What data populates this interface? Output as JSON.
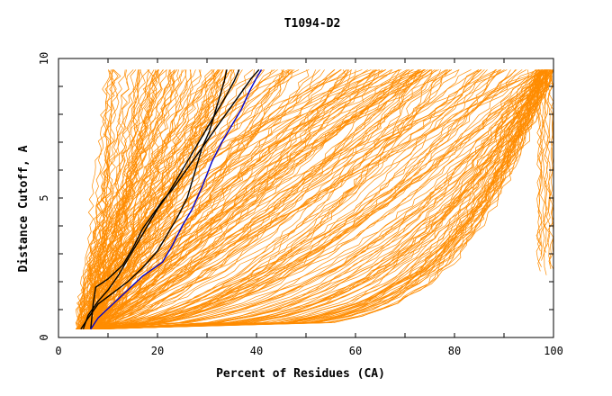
{
  "chart_data": {
    "type": "line",
    "title": "T1094-D2",
    "xlabel": "Percent of Residues (CA)",
    "ylabel": "Distance Cutoff, A",
    "xlim": [
      0,
      100
    ],
    "ylim": [
      0,
      10
    ],
    "x_ticks": [
      0,
      20,
      40,
      60,
      80,
      100
    ],
    "y_ticks": [
      0,
      5,
      10
    ],
    "grid": false,
    "legend": "none",
    "colors": {
      "background_series": "#ff8c00",
      "highlight_black": "#000000",
      "highlight_blue": "#0000cc"
    },
    "highlight_series": [
      {
        "color": "#000000",
        "points": [
          [
            6.5,
            0.3
          ],
          [
            7.0,
            1.2
          ],
          [
            7.5,
            1.8
          ],
          [
            10,
            2.1
          ],
          [
            13,
            2.6
          ],
          [
            15,
            3.2
          ],
          [
            17,
            3.9
          ],
          [
            19,
            4.4
          ],
          [
            21,
            4.9
          ],
          [
            23,
            5.3
          ],
          [
            25,
            5.8
          ],
          [
            27,
            6.3
          ],
          [
            29,
            6.8
          ],
          [
            31,
            7.3
          ],
          [
            33,
            7.8
          ],
          [
            35,
            8.3
          ],
          [
            37,
            8.8
          ],
          [
            39,
            9.3
          ],
          [
            40.5,
            9.6
          ]
        ]
      },
      {
        "color": "#000000",
        "points": [
          [
            5.0,
            0.3
          ],
          [
            6.0,
            0.8
          ],
          [
            8.0,
            1.3
          ],
          [
            10,
            1.7
          ],
          [
            12,
            2.2
          ],
          [
            14,
            2.8
          ],
          [
            16,
            3.4
          ],
          [
            18,
            4.0
          ],
          [
            20,
            4.6
          ],
          [
            22,
            5.1
          ],
          [
            24,
            5.7
          ],
          [
            26,
            6.3
          ],
          [
            28,
            6.9
          ],
          [
            30,
            7.5
          ],
          [
            32,
            8.1
          ],
          [
            34,
            8.7
          ],
          [
            35.5,
            9.2
          ],
          [
            36.5,
            9.6
          ]
        ]
      },
      {
        "color": "#000000",
        "points": [
          [
            4.5,
            0.3
          ],
          [
            6.0,
            0.7
          ],
          [
            8.0,
            1.2
          ],
          [
            11,
            1.6
          ],
          [
            14,
            2.0
          ],
          [
            17,
            2.5
          ],
          [
            20,
            3.1
          ],
          [
            22,
            3.7
          ],
          [
            24,
            4.3
          ],
          [
            26,
            5.0
          ],
          [
            27,
            5.6
          ],
          [
            28,
            6.2
          ],
          [
            29,
            6.8
          ],
          [
            30.5,
            7.4
          ],
          [
            31.5,
            8.0
          ],
          [
            32.5,
            8.6
          ],
          [
            33.5,
            9.2
          ],
          [
            34,
            9.6
          ]
        ]
      },
      {
        "color": "#0000cc",
        "points": [
          [
            6.5,
            0.3
          ],
          [
            8,
            0.7
          ],
          [
            11,
            1.2
          ],
          [
            14,
            1.7
          ],
          [
            17,
            2.2
          ],
          [
            21,
            2.7
          ],
          [
            23,
            3.3
          ],
          [
            25,
            4.0
          ],
          [
            27,
            4.6
          ],
          [
            29,
            5.4
          ],
          [
            31,
            6.3
          ],
          [
            33,
            7.0
          ],
          [
            35,
            7.6
          ],
          [
            37,
            8.2
          ],
          [
            38.5,
            8.8
          ],
          [
            40,
            9.3
          ],
          [
            41,
            9.6
          ]
        ]
      }
    ]
  }
}
